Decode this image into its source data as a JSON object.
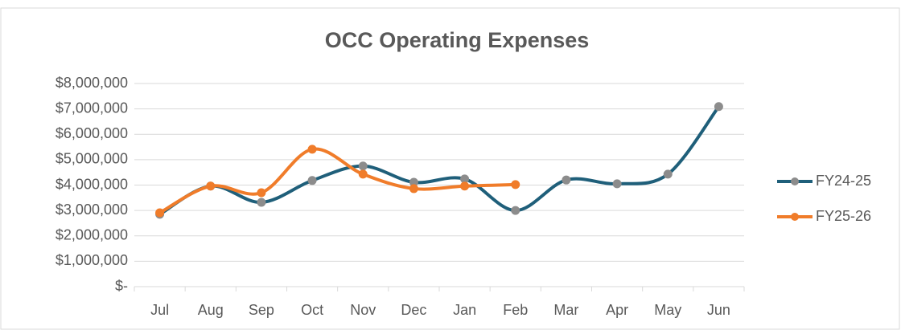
{
  "chart_data": {
    "type": "line",
    "title": "OCC Operating Expenses",
    "categories": [
      "Jul",
      "Aug",
      "Sep",
      "Oct",
      "Nov",
      "Dec",
      "Jan",
      "Feb",
      "Mar",
      "Apr",
      "May",
      "Jun"
    ],
    "series": [
      {
        "name": "FY24-25",
        "color": "#1f5f7a",
        "marker_color": "#8c8c8c",
        "values": [
          2850000,
          3960000,
          3320000,
          4180000,
          4750000,
          4110000,
          4240000,
          3000000,
          4200000,
          4050000,
          4430000,
          7090000
        ]
      },
      {
        "name": "FY25-26",
        "color": "#f07c2a",
        "marker_color": "#f07c2a",
        "values": [
          2910000,
          3960000,
          3700000,
          5410000,
          4430000,
          3860000,
          3960000,
          4020000,
          null,
          null,
          null,
          null
        ]
      }
    ],
    "ylim": [
      0,
      8000000
    ],
    "yticks": [
      {
        "value": 0,
        "label": "$-"
      },
      {
        "value": 1000000,
        "label": "$1,000,000"
      },
      {
        "value": 2000000,
        "label": "$2,000,000"
      },
      {
        "value": 3000000,
        "label": "$3,000,000"
      },
      {
        "value": 4000000,
        "label": "$4,000,000"
      },
      {
        "value": 5000000,
        "label": "$5,000,000"
      },
      {
        "value": 6000000,
        "label": "$6,000,000"
      },
      {
        "value": 7000000,
        "label": "$7,000,000"
      },
      {
        "value": 8000000,
        "label": "$8,000,000"
      }
    ],
    "grid": true,
    "smooth": true,
    "legend": "right"
  }
}
